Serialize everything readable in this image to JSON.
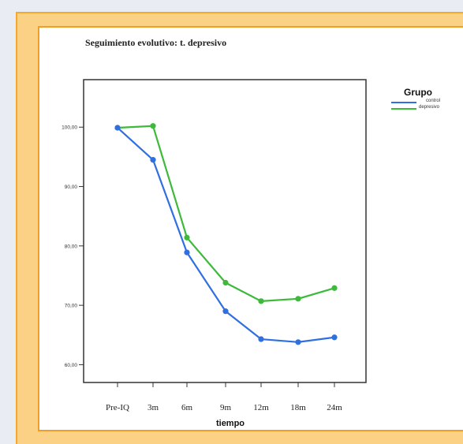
{
  "chart_data": {
    "type": "line",
    "title": "Seguimiento evolutivo: t. depresivo",
    "xlabel": "tiempo",
    "ylabel": "",
    "categories": [
      "Pre-IQ",
      "3m",
      "6m",
      "9m",
      "12m",
      "18m",
      "24m"
    ],
    "yticks": [
      "60,00",
      "70,00",
      "80,00",
      "90,00",
      "100,00"
    ],
    "ytick_values": [
      60,
      70,
      80,
      90,
      100
    ],
    "ylim": [
      57,
      108
    ],
    "grid": false,
    "legend": {
      "title": "Grupo",
      "position": "right",
      "entries": [
        "control",
        "depresivo"
      ]
    },
    "series": [
      {
        "name": "control",
        "color": "#2f6fe0",
        "values": [
          99.9,
          94.5,
          78.9,
          69.0,
          64.3,
          63.8,
          64.6
        ]
      },
      {
        "name": "depresivo",
        "color": "#3dba3a",
        "values": [
          99.9,
          100.2,
          81.4,
          73.8,
          70.7,
          71.1,
          72.9
        ]
      }
    ]
  }
}
